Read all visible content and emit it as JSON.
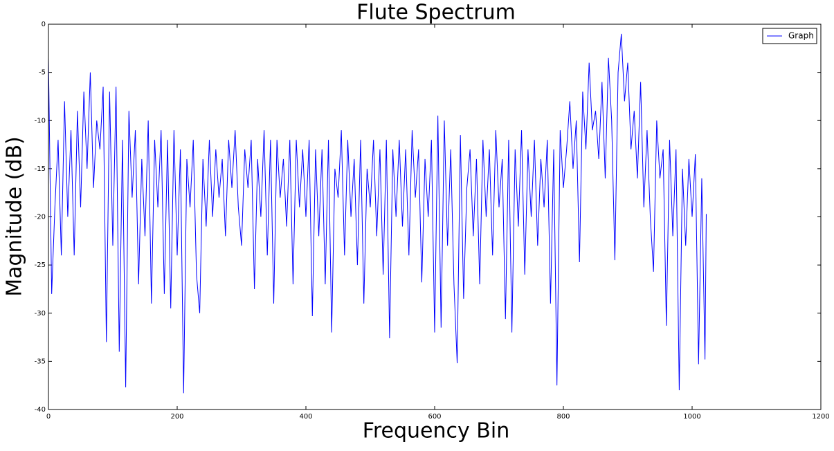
{
  "chart_data": {
    "type": "line",
    "title": "Flute Spectrum",
    "xlabel": "Frequency Bin",
    "ylabel": "Magnitude (dB)",
    "x": [
      0,
      5,
      10,
      15,
      20,
      25,
      30,
      35,
      40,
      45,
      50,
      55,
      60,
      65,
      70,
      75,
      80,
      85,
      90,
      95,
      100,
      105,
      110,
      115,
      120,
      125,
      130,
      135,
      140,
      145,
      150,
      155,
      160,
      165,
      170,
      175,
      180,
      185,
      190,
      195,
      200,
      205,
      210,
      215,
      220,
      225,
      230,
      235,
      240,
      245,
      250,
      255,
      260,
      265,
      270,
      275,
      280,
      285,
      290,
      295,
      300,
      305,
      310,
      315,
      320,
      325,
      330,
      335,
      340,
      345,
      350,
      355,
      360,
      365,
      370,
      375,
      380,
      385,
      390,
      395,
      400,
      405,
      410,
      415,
      420,
      425,
      430,
      435,
      440,
      445,
      450,
      455,
      460,
      465,
      470,
      475,
      480,
      485,
      490,
      495,
      500,
      505,
      510,
      515,
      520,
      525,
      530,
      535,
      540,
      545,
      550,
      555,
      560,
      565,
      570,
      575,
      580,
      585,
      590,
      595,
      600,
      605,
      610,
      615,
      620,
      625,
      630,
      635,
      640,
      645,
      650,
      655,
      660,
      665,
      670,
      675,
      680,
      685,
      690,
      695,
      700,
      705,
      710,
      715,
      720,
      725,
      730,
      735,
      740,
      745,
      750,
      755,
      760,
      765,
      770,
      775,
      780,
      785,
      790,
      795,
      800,
      805,
      810,
      815,
      820,
      825,
      830,
      835,
      840,
      845,
      850,
      855,
      860,
      865,
      870,
      875,
      880,
      885,
      890,
      895,
      900,
      905,
      910,
      915,
      920,
      925,
      930,
      935,
      940,
      945,
      950,
      955,
      960,
      965,
      970,
      975,
      980,
      985,
      990,
      995,
      1000,
      1005,
      1010,
      1015,
      1020,
      1022
    ],
    "series": [
      {
        "name": "Graph",
        "color": "#0000ff",
        "values": [
          -3.5,
          -28,
          -19,
          -12,
          -24,
          -8,
          -20,
          -11,
          -24,
          -9,
          -19,
          -7,
          -15,
          -5,
          -17,
          -10,
          -13,
          -6.5,
          -33,
          -7,
          -23,
          -6.5,
          -34,
          -12,
          -37.7,
          -9,
          -18,
          -11,
          -27,
          -14,
          -22,
          -10,
          -29,
          -12,
          -19,
          -11,
          -28,
          -12,
          -29.5,
          -11,
          -24,
          -13,
          -38.3,
          -14,
          -19,
          -12,
          -26,
          -30,
          -14,
          -21,
          -12,
          -20,
          -13,
          -18,
          -14,
          -22,
          -12,
          -17,
          -11,
          -19,
          -23,
          -13,
          -17,
          -12,
          -27.5,
          -14,
          -20,
          -11,
          -24,
          -12,
          -29,
          -12,
          -18,
          -14,
          -21,
          -12,
          -27,
          -12,
          -19,
          -13,
          -20,
          -12,
          -30.3,
          -13,
          -22,
          -13,
          -27,
          -12,
          -32,
          -15,
          -18,
          -11,
          -24,
          -12,
          -20,
          -14,
          -25,
          -12,
          -29,
          -15,
          -19,
          -12,
          -22,
          -13,
          -26,
          -12,
          -32.6,
          -13,
          -20,
          -12,
          -21,
          -13,
          -24,
          -11,
          -18,
          -13,
          -26.8,
          -14,
          -20,
          -12,
          -32,
          -9.5,
          -31.5,
          -10,
          -23,
          -13,
          -27,
          -35.2,
          -11.5,
          -28.5,
          -17,
          -13,
          -22,
          -14,
          -27,
          -12,
          -20,
          -13,
          -24,
          -11,
          -19,
          -14,
          -30.6,
          -12,
          -32,
          -13,
          -21,
          -11,
          -26,
          -13,
          -20,
          -12,
          -23,
          -14,
          -19,
          -12,
          -29,
          -13,
          -37.5,
          -11,
          -17,
          -13,
          -8,
          -15,
          -10,
          -24.7,
          -7,
          -13,
          -4,
          -11,
          -9,
          -14,
          -6,
          -16,
          -3.5,
          -10,
          -24.5,
          -5,
          -1,
          -8,
          -4,
          -13,
          -9,
          -16,
          -6,
          -19,
          -11,
          -20,
          -25.7,
          -10,
          -16,
          -13,
          -31.3,
          -12,
          -22,
          -13,
          -38,
          -15,
          -23,
          -14,
          -20,
          -13.5,
          -35.3,
          -16,
          -34.8,
          -19.7
        ]
      }
    ],
    "xlim": [
      0,
      1200
    ],
    "xticks": [
      0,
      200,
      400,
      600,
      800,
      1000,
      1200
    ],
    "ylim": [
      -40,
      0
    ],
    "yticks": [
      -40,
      -35,
      -30,
      -25,
      -20,
      -15,
      -10,
      -5,
      0
    ],
    "legend": "upper right"
  }
}
